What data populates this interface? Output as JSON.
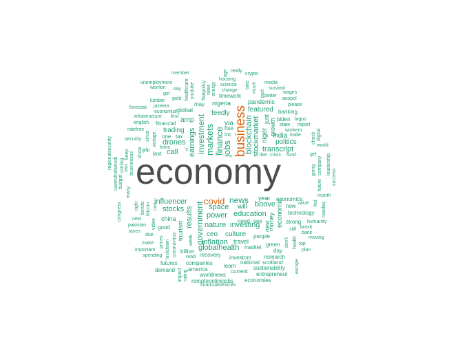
{
  "colors": {
    "teal": "#1b9e77",
    "orange": "#d95f02",
    "gray": "#4d4d4d"
  },
  "words": [
    {
      "text": "economy",
      "color": "gray"
    },
    {
      "text": "business",
      "color": "orange"
    },
    {
      "text": "covid",
      "color": "orange"
    },
    {
      "text": "news",
      "color": "teal"
    },
    {
      "text": "markets",
      "color": "teal"
    },
    {
      "text": "investment",
      "color": "teal"
    },
    {
      "text": "finance",
      "color": "teal"
    },
    {
      "text": "jobs",
      "color": "teal"
    },
    {
      "text": "blockchain",
      "color": "teal"
    },
    {
      "text": "stockmarket",
      "color": "teal"
    },
    {
      "text": "government",
      "color": "teal"
    },
    {
      "text": "results",
      "color": "teal"
    },
    {
      "text": "stocks",
      "color": "teal"
    },
    {
      "text": "influencer",
      "color": "teal"
    },
    {
      "text": "space",
      "color": "teal"
    },
    {
      "text": "power",
      "color": "teal"
    },
    {
      "text": "nature",
      "color": "teal"
    },
    {
      "text": "education",
      "color": "teal"
    },
    {
      "text": "investing",
      "color": "teal"
    },
    {
      "text": "inflation",
      "color": "teal"
    },
    {
      "text": "globalhealth",
      "color": "teal"
    },
    {
      "text": "boove",
      "color": "teal"
    },
    {
      "text": "transcript",
      "color": "teal"
    },
    {
      "text": "economic",
      "color": "teal"
    },
    {
      "text": "earnings",
      "color": "teal"
    },
    {
      "text": "drones",
      "color": "teal"
    },
    {
      "text": "trading",
      "color": "teal"
    },
    {
      "text": "call",
      "color": "teal"
    },
    {
      "text": "feedly",
      "color": "teal"
    },
    {
      "text": "via",
      "color": "teal"
    },
    {
      "text": "ftse",
      "color": "teal"
    },
    {
      "text": "inc",
      "color": "teal"
    },
    {
      "text": "amp",
      "color": "teal"
    },
    {
      "text": "india",
      "color": "teal"
    },
    {
      "text": "politics",
      "color": "teal"
    },
    {
      "text": "niger",
      "color": "teal"
    },
    {
      "text": "just",
      "color": "teal"
    },
    {
      "text": "growth",
      "color": "teal"
    },
    {
      "text": "featured",
      "color": "teal"
    },
    {
      "text": "pandemic",
      "color": "teal"
    },
    {
      "text": "nigeria",
      "color": "teal"
    },
    {
      "text": "timework",
      "color": "teal"
    },
    {
      "text": "may",
      "color": "teal"
    },
    {
      "text": "global",
      "color": "teal"
    },
    {
      "text": "financial",
      "color": "teal"
    },
    {
      "text": "china",
      "color": "teal"
    },
    {
      "text": "ceo",
      "color": "teal"
    },
    {
      "text": "culture",
      "color": "teal"
    },
    {
      "text": "will",
      "color": "teal"
    },
    {
      "text": "year",
      "color": "teal"
    },
    {
      "text": "money",
      "color": "teal"
    },
    {
      "text": "new",
      "color": "teal"
    },
    {
      "text": "people",
      "color": "teal"
    },
    {
      "text": "travel",
      "color": "teal"
    },
    {
      "text": "tourism",
      "color": "teal"
    },
    {
      "text": "economics",
      "color": "teal"
    },
    {
      "text": "technology",
      "color": "teal"
    },
    {
      "text": "now",
      "color": "teal"
    },
    {
      "text": "market",
      "color": "teal"
    },
    {
      "text": "need",
      "color": "teal"
    },
    {
      "text": "see",
      "color": "teal"
    },
    {
      "text": "strong",
      "color": "teal"
    },
    {
      "text": "humanity",
      "color": "teal"
    },
    {
      "text": "recovery",
      "color": "teal"
    },
    {
      "text": "investors",
      "color": "teal"
    },
    {
      "text": "green",
      "color": "teal"
    },
    {
      "text": "day",
      "color": "teal"
    },
    {
      "text": "research",
      "color": "teal"
    },
    {
      "text": "scotland",
      "color": "teal"
    },
    {
      "text": "national",
      "color": "teal"
    },
    {
      "text": "learn",
      "color": "teal"
    },
    {
      "text": "current",
      "color": "teal"
    },
    {
      "text": "sustainability",
      "color": "teal"
    },
    {
      "text": "entrepreneur",
      "color": "teal"
    },
    {
      "text": "economies",
      "color": "teal"
    },
    {
      "text": "remoteonlinejobs",
      "color": "teal"
    },
    {
      "text": "worldnews",
      "color": "teal"
    },
    {
      "text": "america",
      "color": "teal"
    },
    {
      "text": "companies",
      "color": "teal"
    },
    {
      "text": "billion",
      "color": "teal"
    },
    {
      "text": "read",
      "color": "teal"
    },
    {
      "text": "futures",
      "color": "teal"
    },
    {
      "text": "demand",
      "color": "teal"
    },
    {
      "text": "spending",
      "color": "teal"
    },
    {
      "text": "important",
      "color": "teal"
    },
    {
      "text": "make",
      "color": "teal"
    },
    {
      "text": "due",
      "color": "teal"
    },
    {
      "text": "taxes",
      "color": "teal"
    },
    {
      "text": "pakistan",
      "color": "teal"
    },
    {
      "text": "next",
      "color": "teal"
    },
    {
      "text": "good",
      "color": "teal"
    },
    {
      "text": "week",
      "color": "teal"
    },
    {
      "text": "lockdown",
      "color": "teal"
    },
    {
      "text": "prices",
      "color": "teal"
    },
    {
      "text": "coronavirus",
      "color": "teal"
    },
    {
      "text": "congress",
      "color": "teal"
    },
    {
      "text": "many",
      "color": "teal"
    },
    {
      "text": "right",
      "color": "teal"
    },
    {
      "text": "bonds",
      "color": "teal"
    },
    {
      "text": "bitcoin",
      "color": "teal"
    },
    {
      "text": "can",
      "color": "teal"
    },
    {
      "text": "video",
      "color": "teal"
    },
    {
      "text": "last",
      "color": "teal"
    },
    {
      "text": "fomc",
      "color": "teal"
    },
    {
      "text": "gdp",
      "color": "teal"
    },
    {
      "text": "one",
      "color": "teal"
    },
    {
      "text": "tax",
      "color": "teal"
    },
    {
      "text": "vintage",
      "color": "teal"
    },
    {
      "text": "since",
      "color": "teal"
    },
    {
      "text": "security",
      "color": "teal"
    },
    {
      "text": "ratefree",
      "color": "teal"
    },
    {
      "text": "english",
      "color": "teal"
    },
    {
      "text": "infrastructure",
      "color": "teal"
    },
    {
      "text": "first",
      "color": "teal"
    },
    {
      "text": "forecast",
      "color": "teal"
    },
    {
      "text": "economist",
      "color": "teal"
    },
    {
      "text": "jazeera",
      "color": "teal"
    },
    {
      "text": "lumber",
      "color": "teal"
    },
    {
      "text": "gst",
      "color": "teal"
    },
    {
      "text": "gold",
      "color": "teal"
    },
    {
      "text": "women",
      "color": "teal"
    },
    {
      "text": "say",
      "color": "teal"
    },
    {
      "text": "unemployment",
      "color": "teal"
    },
    {
      "text": "member",
      "color": "teal"
    },
    {
      "text": "healthcare",
      "color": "teal"
    },
    {
      "text": "youtube",
      "color": "teal"
    },
    {
      "text": "ftsepolicy",
      "color": "teal"
    },
    {
      "text": "rates",
      "color": "teal"
    },
    {
      "text": "energy",
      "color": "teal"
    },
    {
      "text": "age",
      "color": "teal"
    },
    {
      "text": "really",
      "color": "teal"
    },
    {
      "text": "crypto",
      "color": "teal"
    },
    {
      "text": "housing",
      "color": "teal"
    },
    {
      "text": "science",
      "color": "teal"
    },
    {
      "text": "change",
      "color": "teal"
    },
    {
      "text": "take",
      "color": "teal"
    },
    {
      "text": "much",
      "color": "teal"
    },
    {
      "text": "part",
      "color": "teal"
    },
    {
      "text": "media",
      "color": "teal"
    },
    {
      "text": "survival",
      "color": "teal"
    },
    {
      "text": "wages",
      "color": "teal"
    },
    {
      "text": "better",
      "color": "teal"
    },
    {
      "text": "auspol",
      "color": "teal"
    },
    {
      "text": "please",
      "color": "teal"
    },
    {
      "text": "biden",
      "color": "teal"
    },
    {
      "text": "banking",
      "color": "teal"
    },
    {
      "text": "lagos",
      "color": "teal"
    },
    {
      "text": "state",
      "color": "teal"
    },
    {
      "text": "report",
      "color": "teal"
    },
    {
      "text": "workers",
      "color": "teal"
    },
    {
      "text": "trade",
      "color": "teal"
    },
    {
      "text": "check",
      "color": "teal"
    },
    {
      "text": "digital",
      "color": "teal"
    },
    {
      "text": "get",
      "color": "teal"
    },
    {
      "text": "world",
      "color": "teal"
    },
    {
      "text": "company",
      "color": "teal"
    },
    {
      "text": "going",
      "color": "teal"
    },
    {
      "text": "future",
      "color": "teal"
    },
    {
      "text": "leadership",
      "color": "teal"
    },
    {
      "text": "success",
      "color": "teal"
    },
    {
      "text": "like",
      "color": "teal"
    },
    {
      "text": "crisis",
      "color": "teal"
    },
    {
      "text": "fund",
      "color": "teal"
    },
    {
      "text": "month",
      "color": "teal"
    },
    {
      "text": "value",
      "color": "teal"
    },
    {
      "text": "fed",
      "color": "teal"
    },
    {
      "text": "nasdaq",
      "color": "teal"
    },
    {
      "text": "brexit",
      "color": "teal"
    },
    {
      "text": "bank",
      "color": "teal"
    },
    {
      "text": "moving",
      "color": "teal"
    },
    {
      "text": "still",
      "color": "teal"
    },
    {
      "text": "top",
      "color": "teal"
    },
    {
      "text": "plan",
      "color": "teal"
    },
    {
      "text": "health",
      "color": "teal"
    },
    {
      "text": "don't",
      "color": "teal"
    },
    {
      "text": "europe",
      "color": "teal"
    },
    {
      "text": "regionalsecurity",
      "color": "teal"
    },
    {
      "text": "narendrafamodi",
      "color": "teal"
    },
    {
      "text": "budget",
      "color": "teal"
    },
    {
      "text": "coming",
      "color": "teal"
    },
    {
      "text": "usa",
      "color": "teal"
    },
    {
      "text": "businesses",
      "color": "teal"
    },
    {
      "text": "keep",
      "color": "teal"
    },
    {
      "text": "show",
      "color": "teal"
    },
    {
      "text": "'s",
      "color": "teal"
    },
    {
      "text": "impact",
      "color": "teal"
    },
    {
      "text": "rating",
      "color": "teal"
    },
    {
      "text": "financialservices",
      "color": "teal"
    }
  ]
}
